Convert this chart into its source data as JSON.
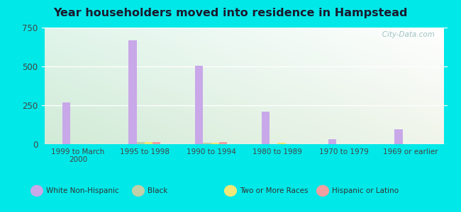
{
  "title": "Year householders moved into residence in Hampstead",
  "categories": [
    "1999 to March\n2000",
    "1995 to 1998",
    "1990 to 1994",
    "1980 to 1989",
    "1970 to 1979",
    "1969 or earlier"
  ],
  "series": {
    "White Non-Hispanic": [
      270,
      670,
      505,
      210,
      30,
      95
    ],
    "Black": [
      0,
      12,
      10,
      0,
      0,
      0
    ],
    "Two or More Races": [
      0,
      12,
      10,
      10,
      0,
      0
    ],
    "Hispanic or Latino": [
      0,
      15,
      15,
      0,
      0,
      0
    ]
  },
  "colors": {
    "White Non-Hispanic": "#c8a8e8",
    "Black": "#c0d0a8",
    "Two or More Races": "#f0e878",
    "Hispanic or Latino": "#f0a0a0"
  },
  "ylim": [
    0,
    750
  ],
  "yticks": [
    0,
    250,
    500,
    750
  ],
  "background_outer": "#00e8e8",
  "background_inner_topleft": "#d8f0d8",
  "background_inner_topright": "#e8f4f0",
  "background_inner_bottomleft": "#f0f8f0",
  "background_inner_bottomright": "#ffffff",
  "watermark": "   City-Data.com",
  "bar_width": 0.12,
  "title_color": "#1a1a2e",
  "tick_color": "#444444",
  "legend_items": [
    "White Non-Hispanic",
    "Black",
    "Two or More Races",
    "Hispanic or Latino"
  ]
}
